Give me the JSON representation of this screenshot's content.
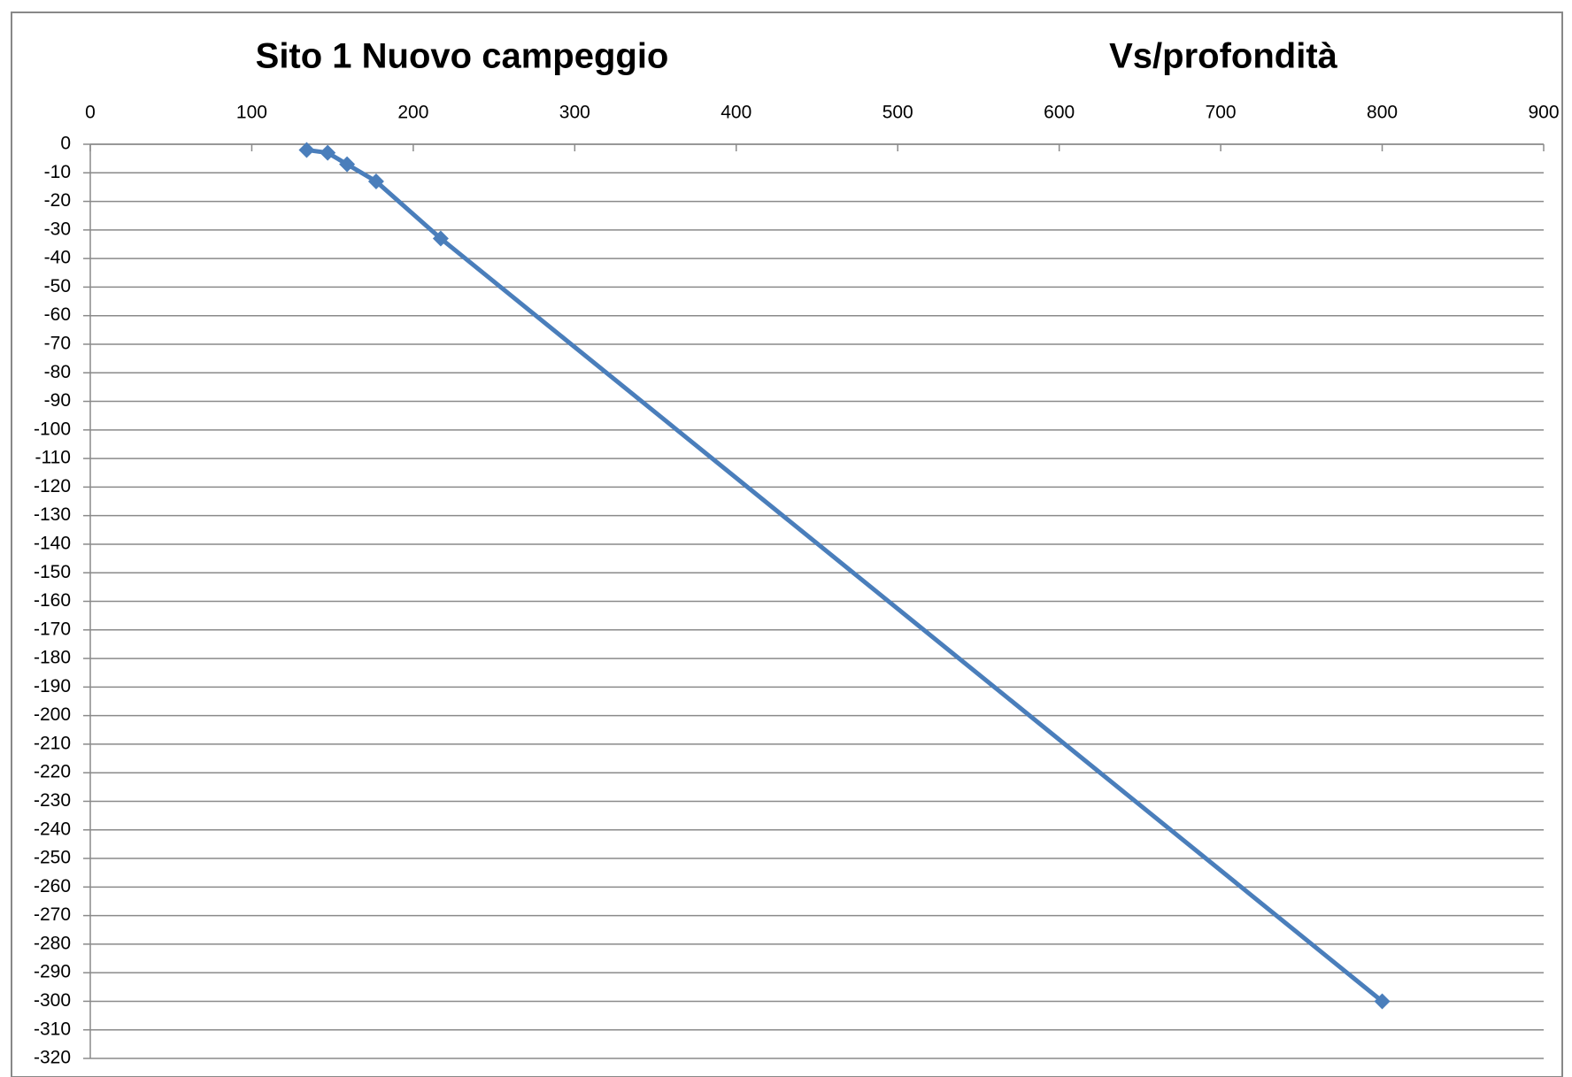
{
  "chart_data": {
    "type": "line",
    "title": "Sito 1 Nuovo campeggio",
    "subtitle": "Vs/profondità",
    "x": [
      134,
      147,
      159,
      177,
      217,
      800
    ],
    "series": [
      {
        "color": "#4a7ebb",
        "values": [
          -2,
          -3,
          -7,
          -13,
          -33,
          -300
        ]
      }
    ],
    "xlim": [
      0,
      900
    ],
    "xticks": [
      0,
      100,
      200,
      300,
      400,
      500,
      600,
      700,
      800,
      900
    ],
    "ylim": [
      -320,
      0
    ],
    "yticks": [
      0,
      -10,
      -20,
      -30,
      -40,
      -50,
      -60,
      -70,
      -80,
      -90,
      -100,
      -110,
      -120,
      -130,
      -140,
      -150,
      -160,
      -170,
      -180,
      -190,
      -200,
      -210,
      -220,
      -230,
      -240,
      -250,
      -260,
      -270,
      -280,
      -290,
      -300,
      -310,
      -320
    ],
    "grid": true,
    "marker": "diamond"
  }
}
